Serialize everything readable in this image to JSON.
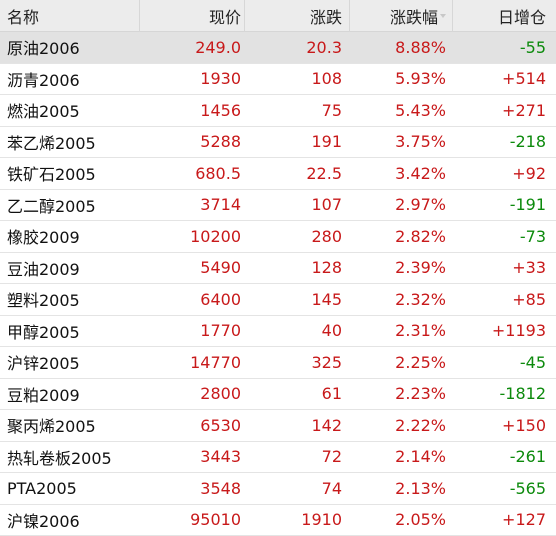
{
  "headers": {
    "name": "名称",
    "price": "现价",
    "change": "涨跌",
    "pct": "涨跌幅",
    "inc": "日增仓"
  },
  "rows": [
    {
      "name": "原油2006",
      "price": "249.0",
      "change": "20.3",
      "pct": "8.88%",
      "inc": "-55"
    },
    {
      "name": "沥青2006",
      "price": "1930",
      "change": "108",
      "pct": "5.93%",
      "inc": "+514"
    },
    {
      "name": "燃油2005",
      "price": "1456",
      "change": "75",
      "pct": "5.43%",
      "inc": "+271"
    },
    {
      "name": "苯乙烯2005",
      "price": "5288",
      "change": "191",
      "pct": "3.75%",
      "inc": "-218"
    },
    {
      "name": "铁矿石2005",
      "price": "680.5",
      "change": "22.5",
      "pct": "3.42%",
      "inc": "+92"
    },
    {
      "name": "乙二醇2005",
      "price": "3714",
      "change": "107",
      "pct": "2.97%",
      "inc": "-191"
    },
    {
      "name": "橡胶2009",
      "price": "10200",
      "change": "280",
      "pct": "2.82%",
      "inc": "-73"
    },
    {
      "name": "豆油2009",
      "price": "5490",
      "change": "128",
      "pct": "2.39%",
      "inc": "+33"
    },
    {
      "name": "塑料2005",
      "price": "6400",
      "change": "145",
      "pct": "2.32%",
      "inc": "+85"
    },
    {
      "name": "甲醇2005",
      "price": "1770",
      "change": "40",
      "pct": "2.31%",
      "inc": "+1193"
    },
    {
      "name": "沪锌2005",
      "price": "14770",
      "change": "325",
      "pct": "2.25%",
      "inc": "-45"
    },
    {
      "name": "豆粕2009",
      "price": "2800",
      "change": "61",
      "pct": "2.23%",
      "inc": "-1812"
    },
    {
      "name": "聚丙烯2005",
      "price": "6530",
      "change": "142",
      "pct": "2.22%",
      "inc": "+150"
    },
    {
      "name": "热轧卷板2005",
      "price": "3443",
      "change": "72",
      "pct": "2.14%",
      "inc": "-261"
    },
    {
      "name": "PTA2005",
      "price": "3548",
      "change": "74",
      "pct": "2.13%",
      "inc": "-565"
    },
    {
      "name": "沪镍2006",
      "price": "95010",
      "change": "1910",
      "pct": "2.05%",
      "inc": "+127"
    }
  ],
  "colors": {
    "up": "#c8191a",
    "down": "#0c8a0c",
    "header_bg": "#ececec",
    "selected_bg": "#e2e2e2"
  },
  "sort": {
    "column": "pct",
    "direction": "desc"
  },
  "selected_row": 0
}
